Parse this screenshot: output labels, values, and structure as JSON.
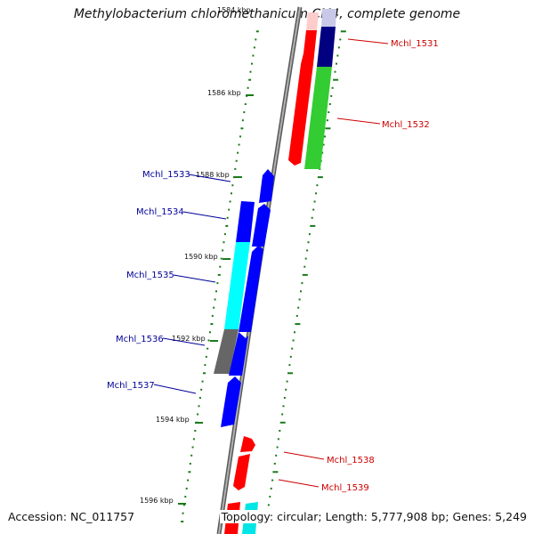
{
  "title": "Methylobacterium chloromethanicum CM4, complete genome",
  "footer": {
    "accession": "Accession: NC_011757",
    "topology": "Topology: circular; Length: 5,777,908 bp; Genes: 5,249"
  },
  "colors": {
    "forward_labels": "#cc0000",
    "reverse_labels": "#000099",
    "backbone": "#888888",
    "ticks": "#1a7a1a"
  },
  "tick_labels": [
    "1584 kbp",
    "1586 kbp",
    "1588 kbp",
    "1590 kbp",
    "1592 kbp",
    "1594 kbp",
    "1596 kbp"
  ],
  "genes": [
    {
      "label": "Mchl_1531",
      "strand": "forward"
    },
    {
      "label": "Mchl_1532",
      "strand": "forward"
    },
    {
      "label": "Mchl_1533",
      "strand": "reverse"
    },
    {
      "label": "Mchl_1534",
      "strand": "reverse"
    },
    {
      "label": "Mchl_1535",
      "strand": "reverse"
    },
    {
      "label": "Mchl_1536",
      "strand": "reverse"
    },
    {
      "label": "Mchl_1537",
      "strand": "reverse"
    },
    {
      "label": "Mchl_1538",
      "strand": "forward"
    },
    {
      "label": "Mchl_1539",
      "strand": "forward"
    }
  ]
}
